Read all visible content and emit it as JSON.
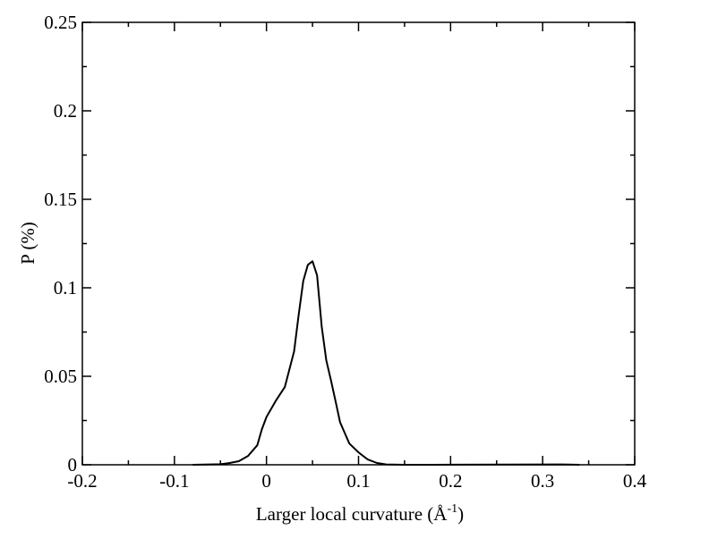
{
  "chart_data": {
    "type": "line",
    "title": "",
    "xlabel_main": "Larger local curvature (Å",
    "xlabel_sup": "-1",
    "xlabel_close": ")",
    "ylabel": "P (%)",
    "xlim": [
      -0.2,
      0.4
    ],
    "ylim": [
      0,
      0.25
    ],
    "grid": false,
    "xticks": [
      -0.2,
      -0.1,
      0,
      0.1,
      0.2,
      0.3,
      0.4
    ],
    "xtick_labels": [
      "-0.2",
      "-0.1",
      "0",
      "0.1",
      "0.2",
      "0.3",
      "0.4"
    ],
    "yticks": [
      0,
      0.05,
      0.1,
      0.15,
      0.2,
      0.25
    ],
    "ytick_labels": [
      "0",
      "0.05",
      "0.1",
      "0.15",
      "0.2",
      "0.25"
    ],
    "series": [
      {
        "color": "#000000",
        "x": [
          -0.08,
          -0.05,
          -0.04,
          -0.03,
          -0.02,
          -0.015,
          -0.01,
          -0.005,
          0,
          0.01,
          0.02,
          0.03,
          0.035,
          0.04,
          0.045,
          0.05,
          0.055,
          0.06,
          0.065,
          0.07,
          0.075,
          0.08,
          0.09,
          0.1,
          0.105,
          0.11,
          0.12,
          0.13,
          0.15,
          0.18,
          0.32,
          0.34
        ],
        "y": [
          0,
          0.0003,
          0.001,
          0.002,
          0.005,
          0.008,
          0.011,
          0.02,
          0.027,
          0.036,
          0.044,
          0.064,
          0.085,
          0.104,
          0.113,
          0.115,
          0.107,
          0.078,
          0.059,
          0.048,
          0.036,
          0.024,
          0.012,
          0.007,
          0.005,
          0.003,
          0.001,
          0.0002,
          0,
          0,
          0.0002,
          0
        ]
      }
    ]
  }
}
